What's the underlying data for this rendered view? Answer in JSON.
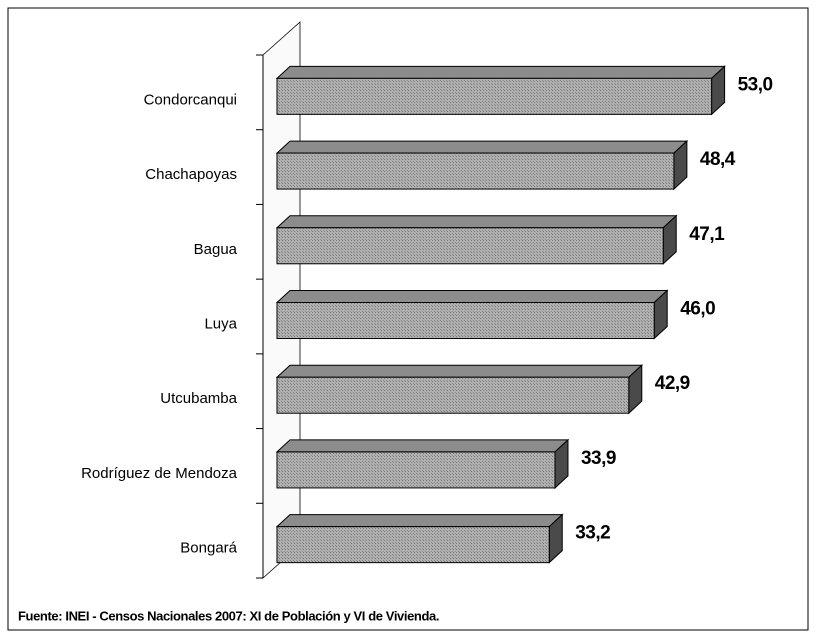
{
  "chart_data": {
    "type": "bar",
    "orientation": "horizontal",
    "categories": [
      "Condorcanqui",
      "Chachapoyas",
      "Bagua",
      "Luya",
      "Utcubamba",
      "Rodríguez de Mendoza",
      "Bongará"
    ],
    "values": [
      53.0,
      48.4,
      47.1,
      46.0,
      42.9,
      33.9,
      33.2
    ],
    "value_labels": [
      "53,0",
      "48,4",
      "47,1",
      "46,0",
      "42,9",
      "33,9",
      "33,2"
    ],
    "color": "#a6a6a6",
    "source": "Fuente: INEI - Censos Nacionales 2007: XI de Población y VI de Vivienda."
  }
}
